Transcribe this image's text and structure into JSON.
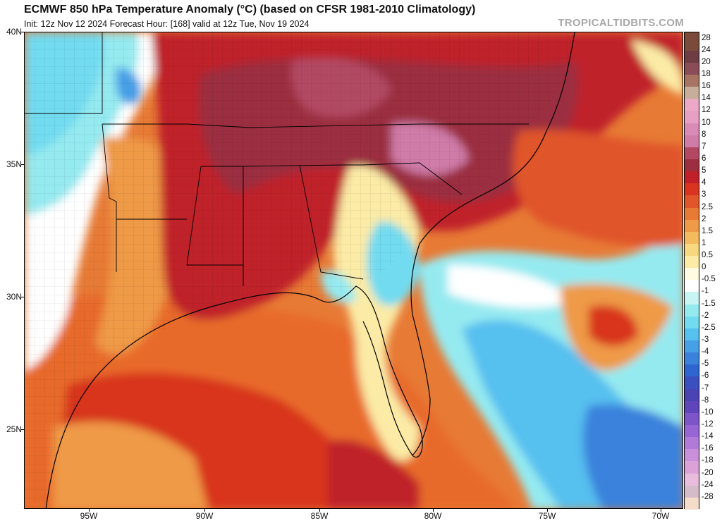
{
  "header": {
    "title": "ECMWF 850 hPa Temperature Anomaly (°C) (based on CFSR 1981-2010 Climatology)",
    "subtitle": "Init: 12z Nov 12 2024   Forecast Hour: [168]   valid at 12z Tue, Nov 19 2024",
    "brand": "TROPICALTIDBITS.COM"
  },
  "axes": {
    "lat_labels": [
      "40N",
      "35N",
      "30N",
      "25N"
    ],
    "lon_labels": [
      "95W",
      "90W",
      "85W",
      "80W",
      "75W",
      "70W"
    ]
  },
  "colorbar": {
    "labels": [
      "28",
      "24",
      "20",
      "18",
      "16",
      "14",
      "12",
      "10",
      "8",
      "7",
      "6",
      "5",
      "4",
      "3",
      "2.5",
      "2",
      "1.5",
      "1",
      "0.5",
      "0",
      "-0.5",
      "-1",
      "-1.5",
      "-2",
      "-2.5",
      "-3",
      "-4",
      "-5",
      "-6",
      "-7",
      "-8",
      "-10",
      "-12",
      "-14",
      "-16",
      "-18",
      "-20",
      "-24",
      "-28"
    ],
    "colors": [
      "#7a4a3a",
      "#6e3d44",
      "#8a4d57",
      "#a77464",
      "#c6ae9a",
      "#eba9c7",
      "#e6a0c4",
      "#d98bb7",
      "#cf7ca8",
      "#b24863",
      "#9b2f3f",
      "#c0202a",
      "#d8341f",
      "#e0552a",
      "#e77a35",
      "#ee9a46",
      "#f3bb5e",
      "#f7d77f",
      "#fbeba6",
      "#fffbe2",
      "#ffffff",
      "#c9f4f4",
      "#95eaf0",
      "#72dbf0",
      "#56c0ef",
      "#479fe6",
      "#3b82dc",
      "#2f65d0",
      "#3b4fbf",
      "#4a43b2",
      "#5f45b9",
      "#7d55c8",
      "#9866d4",
      "#b27ad8",
      "#c98fd9",
      "#dba2d8",
      "#e9bcdd",
      "#d6bcc8",
      "#f4dccb"
    ]
  },
  "map": {
    "feature": "850 hPa temperature anomaly over southeastern United States and Gulf of Mexico"
  }
}
